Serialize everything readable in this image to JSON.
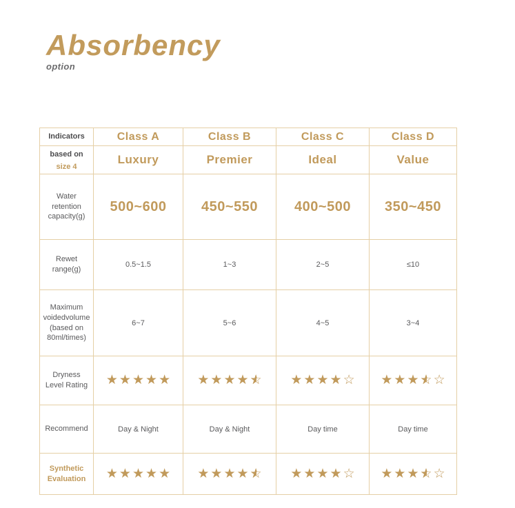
{
  "header": {
    "title": "Absorbency",
    "subtitle": "option"
  },
  "colors": {
    "gold": "#C19A5B",
    "border": "#E5CFA5",
    "text_gray": "#59595B"
  },
  "icons": {
    "star_full": "★",
    "star_empty": "☆"
  },
  "table": {
    "corner": {
      "line1": "Indicators",
      "line2": "based on",
      "line3": "size 4"
    },
    "columns": [
      {
        "class_label": "Class A",
        "tier": "Luxury"
      },
      {
        "class_label": "Class B",
        "tier": "Premier"
      },
      {
        "class_label": "Class C",
        "tier": "Ideal"
      },
      {
        "class_label": "Class D",
        "tier": "Value"
      }
    ],
    "rows": [
      {
        "label": "Water retention capacity(g)",
        "values": [
          "500~600",
          "450~550",
          "400~500",
          "350~450"
        ]
      },
      {
        "label": "Rewet range(g)",
        "values": [
          "0.5~1.5",
          "1~3",
          "2~5",
          "≤10"
        ]
      },
      {
        "label": "Maximum voidedvolume (based on 80ml/times)",
        "values": [
          "6~7",
          "5~6",
          "4~5",
          "3~4"
        ]
      },
      {
        "label": "Dryness Level Rating",
        "ratings": [
          5,
          4.5,
          4,
          3.5
        ]
      },
      {
        "label": "Recommend",
        "values": [
          "Day & Night",
          "Day & Night",
          "Day time",
          "Day time"
        ]
      },
      {
        "label": "Synthetic Evaluation",
        "ratings": [
          5,
          4.5,
          4,
          3.5
        ]
      }
    ]
  }
}
